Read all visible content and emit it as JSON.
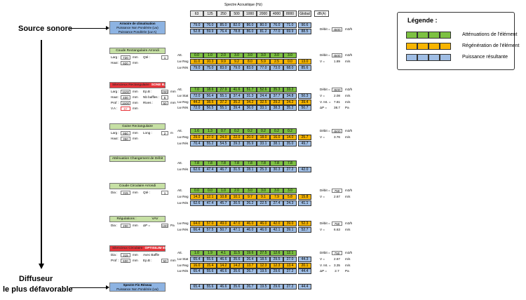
{
  "source_label": "Source sonore",
  "diffuser_label_1": "Diffuseur",
  "diffuser_label_2": "le plus défavorable",
  "spectrum_title": "Spectre Acoustique (Hz)",
  "freqs": [
    "63",
    "125",
    "250",
    "500",
    "1000",
    "2000",
    "4000",
    "8000"
  ],
  "global_label": "Global",
  "unit_label": "dB(A)",
  "legend": {
    "title": "Légende :",
    "items": [
      {
        "label": "Atténuations de l'élément",
        "color": "#7dc142"
      },
      {
        "label": "Régénération de l'élément",
        "color": "#f8b500"
      },
      {
        "label": "Puissance résultante",
        "color": "#9fbde4"
      }
    ]
  },
  "colors": {
    "green": "#7dc142",
    "orange": "#f8b500",
    "blue": "#9fbde4",
    "title_green": "#c6e0a4",
    "title_blue": "#8db3e2",
    "title_red": "#e8353b"
  },
  "blocks": [
    {
      "title1": "Armoire de climatisation",
      "title2": "Puissance Non Pondérée (Lw)",
      "title3": "Puissance Pondérée (Lw A)",
      "rows": [
        {
          "label": "",
          "cls": "b",
          "vals": [
            "79.0",
            "76.0",
            "85.0",
            "82.0",
            "86.0",
            "80.0",
            "76.0",
            "71.0"
          ],
          "g": "90.6"
        },
        {
          "label": "",
          "cls": "b",
          "vals": [
            "52.8",
            "59.9",
            "76.4",
            "78.8",
            "86.0",
            "81.2",
            "77.0",
            "69.9"
          ],
          "g": "88.5"
        }
      ],
      "right": [
        {
          "k": "Débit =",
          "v": "4500",
          "u": "m3/h"
        }
      ]
    },
    {
      "title": "Coude Rectangulaire Arrondi",
      "params": [
        [
          {
            "k": "Larg :",
            "v": "720",
            "u": "mm"
          },
          {
            "k": "Qté :",
            "v": "1",
            "u": ""
          }
        ],
        [
          {
            "k": "Haut :",
            "v": "920",
            "u": "mm"
          }
        ]
      ],
      "rows": [
        {
          "label": "Att.",
          "cls": "g",
          "vals": [
            "0.0",
            "1.0",
            "2.0",
            "3.0",
            "3.0",
            "3.0",
            "3.0",
            "3.0"
          ],
          "g": ""
        },
        {
          "label": "Lw Reg",
          "cls": "o",
          "vals": [
            "11.0",
            "10.3",
            "9.9",
            "9.2",
            "8.0",
            "5.9",
            "2.5",
            "0.0"
          ],
          "g": "13.0"
        },
        {
          "label": "Lw Rés",
          "cls": "b",
          "vals": [
            "79.0",
            "75.0",
            "83.0",
            "79.0",
            "83.0",
            "77.0",
            "73.0",
            "68.0"
          ],
          "g": "85.6"
        }
      ],
      "right": [
        {
          "k": "Débit =",
          "v": "4500",
          "u": "m3/h"
        },
        {
          "k": "V =",
          "v": "1.89",
          "u": "m/s"
        }
      ]
    },
    {
      "title": "Silencieux Rectangulaire",
      "title_sub": "SONE B...",
      "params": [
        [
          {
            "k": "Larg :",
            "v": "1500",
            "u": "mm"
          },
          {
            "k": "Ep.B :",
            "v": "200",
            "u": "mm"
          }
        ],
        [
          {
            "k": "Haut :",
            "v": "400",
            "u": "mm"
          },
          {
            "k": "Nb baffles :",
            "v": "5",
            "u": ""
          }
        ],
        [
          {
            "k": "Prof :",
            "v": "1500",
            "u": "mm"
          },
          {
            "k": "Rives :",
            "v": "50",
            "u": "mm"
          }
        ],
        [
          {
            "k": "V.A :",
            "v": "67",
            "u": "mm"
          }
        ]
      ],
      "rows": [
        {
          "label": "Att.",
          "cls": "g",
          "vals": [
            "7.0",
            "18.6",
            "27.9",
            "41.6",
            "51.7",
            "52.6",
            "35.3",
            "33.2"
          ],
          "g": ""
        },
        {
          "label": "Lw Stat",
          "cls": "b",
          "vals": [
            "72.0",
            "56.4",
            "55.1",
            "37.4",
            "31.3",
            "24.4",
            "37.7",
            "34.8"
          ],
          "g": "50.3"
        },
        {
          "label": "Lw Reg",
          "cls": "o",
          "vals": [
            "44.2",
            "38.5",
            "37.2",
            "35.2",
            "34.2",
            "32.5",
            "29.2",
            "24.2"
          ],
          "g": "39.4"
        },
        {
          "label": "Lw Rés",
          "cls": "b",
          "vals": [
            "72.0",
            "56.5",
            "55.1",
            "39.4",
            "36.0",
            "33.1",
            "38.3",
            "35.2"
          ],
          "g": "50.7"
        }
      ],
      "right": [
        {
          "k": "Débit =",
          "v": "4500",
          "u": "m3/h"
        },
        {
          "k": "V =",
          "v": "2.08",
          "u": "m/s"
        },
        {
          "k": "V. Int. =",
          "v": "7.81",
          "u": "m/s"
        },
        {
          "k": "ΔP =",
          "v": "38.7",
          "u": "Pa"
        }
      ]
    },
    {
      "title": "Gaine Rectangulaire",
      "params": [
        [
          {
            "k": "Larg :",
            "v": "950",
            "u": "mm"
          },
          {
            "k": "Long :",
            "v": "2",
            "u": "m"
          }
        ],
        [
          {
            "k": "Haut :",
            "v": "350",
            "u": "mm"
          }
        ]
      ],
      "rows": [
        {
          "label": "Att.",
          "cls": "g",
          "vals": [
            "1.6",
            "1.3",
            "0.7",
            "0.2",
            "0.2",
            "0.2",
            "0.2",
            "0.2"
          ],
          "g": ""
        },
        {
          "label": "Lw Reg",
          "cls": "o",
          "vals": [
            "29.0",
            "27.0",
            "24.0",
            "22.0",
            "20.0",
            "18.0",
            "16.0",
            "14.0"
          ],
          "g": "25.7"
        },
        {
          "label": "Lw Rés",
          "cls": "b",
          "vals": [
            "70.4",
            "55.2",
            "54.5",
            "39.3",
            "35.9",
            "33.1",
            "38.1",
            "35.0"
          ],
          "g": "49.7"
        }
      ],
      "right": [
        {
          "k": "Débit =",
          "v": "4500",
          "u": "m3/h"
        },
        {
          "k": "V =",
          "v": "3.76",
          "u": "m/s"
        }
      ]
    },
    {
      "title": "Atténuation Changement de Débit",
      "params": [],
      "rows": [
        {
          "label": "Att.",
          "cls": "g",
          "vals": [
            "7.8",
            "7.8",
            "7.8",
            "7.8",
            "7.8",
            "7.8",
            "7.8",
            "7.8"
          ],
          "g": ""
        },
        {
          "label": "Lw Rés",
          "cls": "b",
          "vals": [
            "62.6",
            "47.4",
            "46.7",
            "31.5",
            "28.1",
            "25.3",
            "30.3",
            "27.2"
          ],
          "g": "42.0"
        }
      ],
      "right": []
    },
    {
      "title": "Coude Circulaire Arrondi",
      "params": [
        [
          {
            "k": "Dia :",
            "v": "315",
            "u": "mm"
          },
          {
            "k": "Qté :",
            "v": "1",
            "u": ""
          }
        ]
      ],
      "rows": [
        {
          "label": "Att.",
          "cls": "g",
          "vals": [
            "0.0",
            "0.0",
            "1.0",
            "2.0",
            "3.0",
            "3.0",
            "3.0",
            "3.0"
          ],
          "g": ""
        },
        {
          "label": "Lw Reg",
          "cls": "o",
          "vals": [
            "14.3",
            "12.1",
            "10.8",
            "10.1",
            "9.7",
            "9.1",
            "7.9",
            "5.8"
          ],
          "g": "15.8"
        },
        {
          "label": "Lw Rés",
          "cls": "b",
          "vals": [
            "62.6",
            "47.4",
            "45.7",
            "30.5",
            "26.2",
            "22.5",
            "27.4",
            "24.3"
          ],
          "g": "41.1"
        }
      ],
      "right": [
        {
          "k": "Débit =",
          "v": "750",
          "u": "m3/h"
        },
        {
          "k": "V =",
          "v": "2.67",
          "u": "m/s"
        }
      ]
    },
    {
      "title": "Régulations :",
      "title_sub": "VAV",
      "params": [
        [
          {
            "k": "Dia :",
            "v": "200",
            "u": "mm"
          },
          {
            "k": "ΔP =",
            "v": "100",
            "u": "Pa"
          }
        ]
      ],
      "rows": [
        {
          "label": "Lw Reg",
          "cls": "o",
          "vals": [
            "64.0",
            "57.0",
            "49.0",
            "47.0",
            "46.0",
            "46.0",
            "42.0",
            "39.0"
          ],
          "g": "52.3"
        },
        {
          "label": "Lw Rés",
          "cls": "b",
          "vals": [
            "66.4",
            "57.5",
            "50.7",
            "47.1",
            "46.0",
            "46.0",
            "42.1",
            "39.1"
          ],
          "g": "52.7"
        }
      ],
      "right": [
        {
          "k": "Débit =",
          "v": "750",
          "u": "m3/h"
        },
        {
          "k": "V =",
          "v": "6.63",
          "u": "m/s"
        }
      ]
    },
    {
      "title": "Silencieux Circulaire",
      "title_sub": "OPTISILIM 50",
      "params": [
        [
          {
            "k": "Dia :",
            "v": "315",
            "u": "mm"
          },
          {
            "k": "Avec Baffle",
            "v": "",
            "u": ""
          }
        ],
        [
          {
            "k": "Prof :",
            "v": "600",
            "u": "mm"
          },
          {
            "k": "Ep.B :",
            "v": "50",
            "u": "mm"
          }
        ]
      ],
      "rows": [
        {
          "label": "Att.",
          "cls": "g",
          "vals": [
            "1.0",
            "1.9",
            "4.1",
            "11.5",
            "19.6",
            "27.5",
            "12.6",
            "12.1"
          ],
          "g": ""
        },
        {
          "label": "Lw Stat",
          "cls": "b",
          "vals": [
            "65.4",
            "55.6",
            "46.6",
            "35.6",
            "26.4",
            "18.5",
            "29.5",
            "27.0"
          ],
          "g": "44.3"
        },
        {
          "label": "Lw Reg",
          "cls": "o",
          "vals": [
            "16.0",
            "15.4",
            "14.2",
            "14.2",
            "13.7",
            "12.3",
            "12.3",
            "13.4"
          ],
          "g": "20.1"
        },
        {
          "label": "Lw Rés",
          "cls": "b",
          "vals": [
            "65.4",
            "55.6",
            "46.6",
            "35.6",
            "26.7",
            "19.5",
            "29.6",
            "27.2"
          ],
          "g": "44.4"
        }
      ],
      "right": [
        {
          "k": "Débit =",
          "v": "750",
          "u": "m3/h"
        },
        {
          "k": "V =",
          "v": "2.67",
          "u": "m/s"
        },
        {
          "k": "V. Int. =",
          "v": "3.35",
          "u": "m/s"
        },
        {
          "k": "ΔP =",
          "v": "2.7",
          "u": "Pa"
        }
      ]
    },
    {
      "title1": "Spectre Fin Réseau",
      "title2": "Puissance Non Pondérée (Lw)",
      "rows": [
        {
          "label": "",
          "cls": "b",
          "vals": [
            "65.4",
            "55.6",
            "46.6",
            "35.6",
            "26.7",
            "19.5",
            "29.6",
            "27.2"
          ],
          "g": "44.4"
        }
      ],
      "right": []
    }
  ]
}
